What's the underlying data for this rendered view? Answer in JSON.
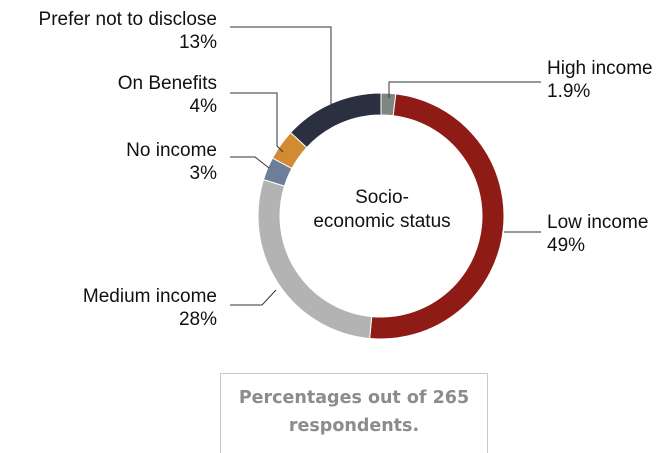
{
  "chart_data": {
    "type": "pie",
    "variant": "donut",
    "center_label": [
      "Socio-",
      "economic status"
    ],
    "slices": [
      {
        "name": "High income",
        "value": 1.9,
        "label": "1.9%",
        "color": "#7f8682"
      },
      {
        "name": "Low income",
        "value": 49,
        "label": "49%",
        "color": "#8e1b16"
      },
      {
        "name": "Medium income",
        "value": 28,
        "label": "28%",
        "color": "#b3b3b3"
      },
      {
        "name": "No income",
        "value": 3,
        "label": "3%",
        "color": "#6d7e99"
      },
      {
        "name": "On Benefits",
        "value": 4,
        "label": "4%",
        "color": "#d18b33"
      },
      {
        "name": "Prefer not to disclose",
        "value": 13,
        "label": "13%",
        "color": "#2b3040"
      }
    ],
    "legend": "none",
    "annotation": {
      "lines": [
        "Percentages out of 265",
        "respondents."
      ]
    }
  }
}
